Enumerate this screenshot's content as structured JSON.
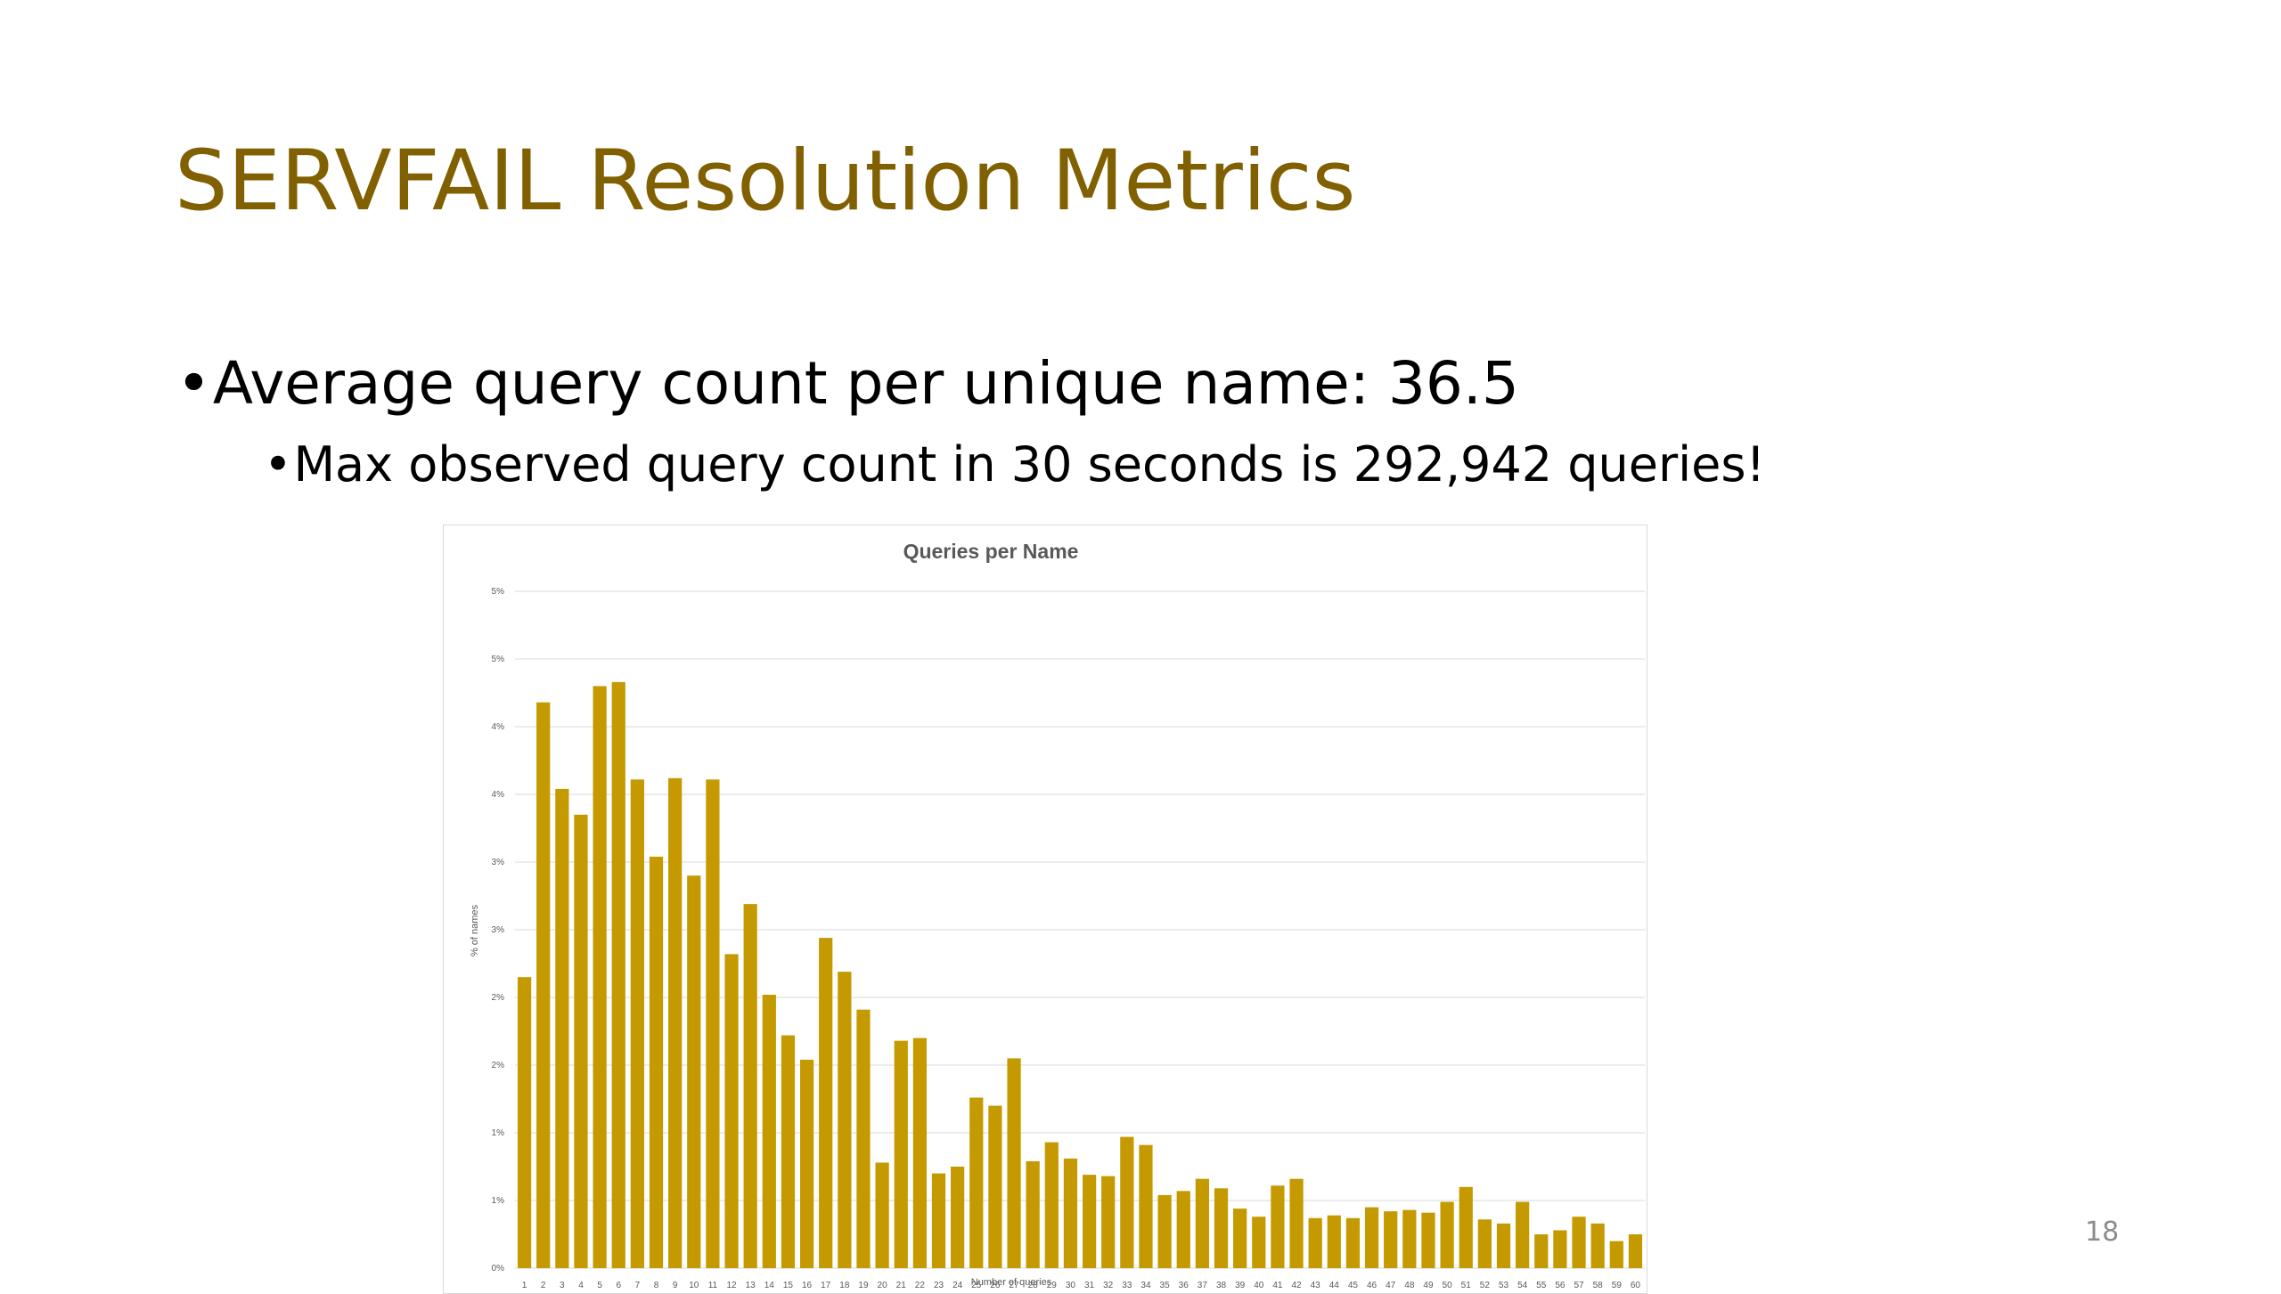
{
  "slide": {
    "title": "SERVFAIL Resolution Metrics",
    "bullets": [
      "Average query count per unique name: 36.5",
      "Max observed query count in 30 seconds is 292,942 queries!"
    ],
    "page_number": "18"
  },
  "colors": {
    "title": "#806000",
    "bar": "#C49A00",
    "gridline": "#d9d9d9",
    "tick_text": "#595959"
  },
  "chart_data": {
    "type": "bar",
    "title": "Queries per Name",
    "xlabel": "Number of queries",
    "ylabel": "% of names",
    "ylim": [
      0,
      0.05
    ],
    "yticks": [
      0,
      0.005,
      0.01,
      0.015,
      0.02,
      0.025,
      0.03,
      0.035,
      0.04,
      0.045,
      0.05
    ],
    "ytick_labels": [
      "0%",
      "1%",
      "1%",
      "2%",
      "2%",
      "3%",
      "3%",
      "4%",
      "4%",
      "5%",
      "5%"
    ],
    "grid": true,
    "legend": "none",
    "categories": [
      "1",
      "2",
      "3",
      "4",
      "5",
      "6",
      "7",
      "8",
      "9",
      "10",
      "11",
      "12",
      "13",
      "14",
      "15",
      "16",
      "17",
      "18",
      "19",
      "20",
      "21",
      "22",
      "23",
      "24",
      "25",
      "26",
      "27",
      "28",
      "29",
      "30",
      "31",
      "32",
      "33",
      "34",
      "35",
      "36",
      "37",
      "38",
      "39",
      "40",
      "41",
      "42",
      "43",
      "44",
      "45",
      "46",
      "47",
      "48",
      "49",
      "50",
      "51",
      "52",
      "53",
      "54",
      "55",
      "56",
      "57",
      "58",
      "59",
      "60"
    ],
    "values": [
      0.0215,
      0.0418,
      0.0354,
      0.0335,
      0.043,
      0.0433,
      0.0361,
      0.0304,
      0.0362,
      0.029,
      0.0361,
      0.0232,
      0.0269,
      0.0202,
      0.0172,
      0.0154,
      0.0244,
      0.0219,
      0.0191,
      0.0078,
      0.0168,
      0.017,
      0.007,
      0.0075,
      0.0126,
      0.012,
      0.0155,
      0.0079,
      0.0093,
      0.0081,
      0.0069,
      0.0068,
      0.0097,
      0.0091,
      0.0054,
      0.0057,
      0.0066,
      0.0059,
      0.0044,
      0.0038,
      0.0061,
      0.0066,
      0.0037,
      0.0039,
      0.0037,
      0.0045,
      0.0042,
      0.0043,
      0.0041,
      0.0049,
      0.006,
      0.0036,
      0.0033,
      0.0049,
      0.0025,
      0.0028,
      0.0038,
      0.0033,
      0.002,
      0.0025
    ]
  }
}
